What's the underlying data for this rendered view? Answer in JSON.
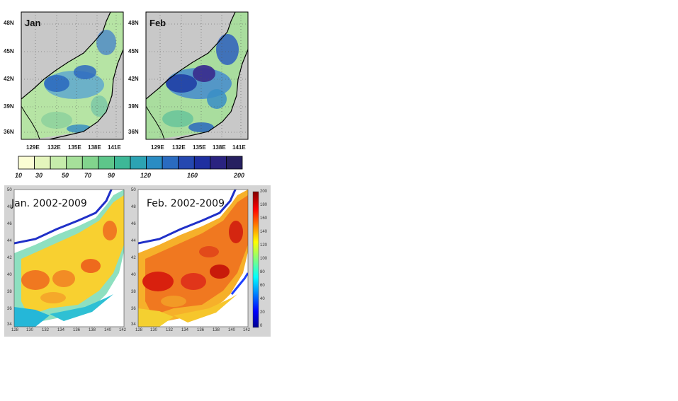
{
  "top_maps": [
    {
      "label": "Jan",
      "lat_ticks": [
        "48N",
        "45N",
        "42N",
        "39N",
        "36N"
      ],
      "lon_ticks": [
        "129E",
        "132E",
        "135E",
        "138E",
        "141E"
      ]
    },
    {
      "label": "Feb",
      "lat_ticks": [
        "48N",
        "45N",
        "42N",
        "39N",
        "36N"
      ],
      "lon_ticks": [
        "129E",
        "132E",
        "135E",
        "138E",
        "141E"
      ]
    }
  ],
  "colorbar_top": {
    "ticks": [
      "10",
      "30",
      "50",
      "70",
      "90",
      "120",
      "160",
      "200"
    ],
    "colors": [
      "#fbfdd4",
      "#e4f5bc",
      "#c6ecab",
      "#a6e09a",
      "#82d48d",
      "#5dc68a",
      "#3db897",
      "#2ca3b3",
      "#2a8cc3",
      "#2a6bc0",
      "#2548b0",
      "#1e2fa0",
      "#2a2380",
      "#262060"
    ]
  },
  "bottom_maps": [
    {
      "title": "Jan. 2002-2009",
      "lat_ticks": [
        "50",
        "48",
        "46",
        "44",
        "42",
        "40",
        "38",
        "36",
        "34"
      ],
      "lon_ticks": [
        "128",
        "130",
        "132",
        "134",
        "136",
        "138",
        "140",
        "142"
      ]
    },
    {
      "title": "Feb. 2002-2009",
      "lat_ticks": [
        "50",
        "48",
        "46",
        "44",
        "42",
        "40",
        "38",
        "36",
        "34"
      ],
      "lon_ticks": [
        "128",
        "130",
        "132",
        "134",
        "136",
        "138",
        "140",
        "142"
      ]
    }
  ],
  "colorbar_right": {
    "ticks": [
      "200",
      "180",
      "160",
      "140",
      "120",
      "100",
      "80",
      "60",
      "40",
      "20",
      "0"
    ]
  }
}
